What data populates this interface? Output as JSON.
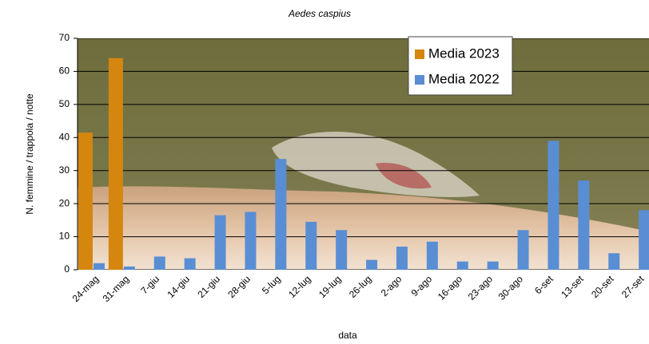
{
  "chart_data": {
    "type": "bar",
    "title": "Aedes caspius",
    "x_label": "data",
    "y_label": "N. femmine / trappola / notte",
    "categories": [
      "24-mag",
      "31-mag",
      "7-giu",
      "14-giu",
      "21-giu",
      "28-giu",
      "5-lug",
      "12-lug",
      "19-lug",
      "26-lug",
      "2-ago",
      "9-ago",
      "16-ago",
      "23-ago",
      "30-ago",
      "6-set",
      "13-set",
      "20-set",
      "27-set"
    ],
    "series": [
      {
        "name": "Media 2023",
        "color": "#d4860f",
        "values": [
          41.5,
          64,
          null,
          null,
          null,
          null,
          null,
          null,
          null,
          null,
          null,
          null,
          null,
          null,
          null,
          null,
          null,
          null,
          null
        ]
      },
      {
        "name": "Media 2022",
        "color": "#5a8ed4",
        "values": [
          2,
          1,
          4,
          3.5,
          16.5,
          17.5,
          33.5,
          14.5,
          12,
          3,
          7,
          8.5,
          2.5,
          2.5,
          12,
          39,
          27,
          5,
          18
        ]
      }
    ],
    "ylim": [
      0,
      70
    ],
    "yticks": [
      0,
      10,
      20,
      30,
      40,
      50,
      60,
      70
    ],
    "grid": true,
    "legend": "top-right"
  }
}
